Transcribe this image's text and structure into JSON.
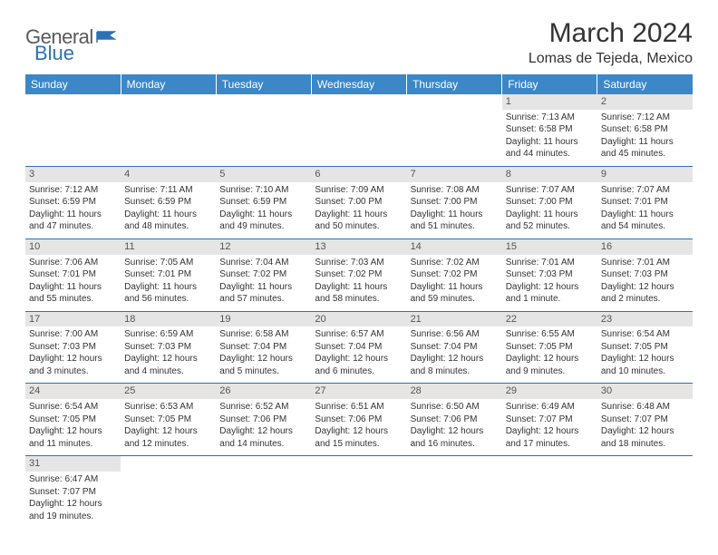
{
  "brand": {
    "general": "General",
    "blue": "Blue"
  },
  "title": "March 2024",
  "location": "Lomas de Tejeda, Mexico",
  "colors": {
    "header_bg": "#3b87c8",
    "border": "#2a72b5",
    "daynum_bg": "#e5e5e5",
    "logo_gray": "#5a5a5a",
    "logo_blue": "#2a72b5"
  },
  "weekdays": [
    "Sunday",
    "Monday",
    "Tuesday",
    "Wednesday",
    "Thursday",
    "Friday",
    "Saturday"
  ],
  "weeks": [
    [
      null,
      null,
      null,
      null,
      null,
      {
        "n": "1",
        "sr": "Sunrise: 7:13 AM",
        "ss": "Sunset: 6:58 PM",
        "dl1": "Daylight: 11 hours",
        "dl2": "and 44 minutes."
      },
      {
        "n": "2",
        "sr": "Sunrise: 7:12 AM",
        "ss": "Sunset: 6:58 PM",
        "dl1": "Daylight: 11 hours",
        "dl2": "and 45 minutes."
      }
    ],
    [
      {
        "n": "3",
        "sr": "Sunrise: 7:12 AM",
        "ss": "Sunset: 6:59 PM",
        "dl1": "Daylight: 11 hours",
        "dl2": "and 47 minutes."
      },
      {
        "n": "4",
        "sr": "Sunrise: 7:11 AM",
        "ss": "Sunset: 6:59 PM",
        "dl1": "Daylight: 11 hours",
        "dl2": "and 48 minutes."
      },
      {
        "n": "5",
        "sr": "Sunrise: 7:10 AM",
        "ss": "Sunset: 6:59 PM",
        "dl1": "Daylight: 11 hours",
        "dl2": "and 49 minutes."
      },
      {
        "n": "6",
        "sr": "Sunrise: 7:09 AM",
        "ss": "Sunset: 7:00 PM",
        "dl1": "Daylight: 11 hours",
        "dl2": "and 50 minutes."
      },
      {
        "n": "7",
        "sr": "Sunrise: 7:08 AM",
        "ss": "Sunset: 7:00 PM",
        "dl1": "Daylight: 11 hours",
        "dl2": "and 51 minutes."
      },
      {
        "n": "8",
        "sr": "Sunrise: 7:07 AM",
        "ss": "Sunset: 7:00 PM",
        "dl1": "Daylight: 11 hours",
        "dl2": "and 52 minutes."
      },
      {
        "n": "9",
        "sr": "Sunrise: 7:07 AM",
        "ss": "Sunset: 7:01 PM",
        "dl1": "Daylight: 11 hours",
        "dl2": "and 54 minutes."
      }
    ],
    [
      {
        "n": "10",
        "sr": "Sunrise: 7:06 AM",
        "ss": "Sunset: 7:01 PM",
        "dl1": "Daylight: 11 hours",
        "dl2": "and 55 minutes."
      },
      {
        "n": "11",
        "sr": "Sunrise: 7:05 AM",
        "ss": "Sunset: 7:01 PM",
        "dl1": "Daylight: 11 hours",
        "dl2": "and 56 minutes."
      },
      {
        "n": "12",
        "sr": "Sunrise: 7:04 AM",
        "ss": "Sunset: 7:02 PM",
        "dl1": "Daylight: 11 hours",
        "dl2": "and 57 minutes."
      },
      {
        "n": "13",
        "sr": "Sunrise: 7:03 AM",
        "ss": "Sunset: 7:02 PM",
        "dl1": "Daylight: 11 hours",
        "dl2": "and 58 minutes."
      },
      {
        "n": "14",
        "sr": "Sunrise: 7:02 AM",
        "ss": "Sunset: 7:02 PM",
        "dl1": "Daylight: 11 hours",
        "dl2": "and 59 minutes."
      },
      {
        "n": "15",
        "sr": "Sunrise: 7:01 AM",
        "ss": "Sunset: 7:03 PM",
        "dl1": "Daylight: 12 hours",
        "dl2": "and 1 minute."
      },
      {
        "n": "16",
        "sr": "Sunrise: 7:01 AM",
        "ss": "Sunset: 7:03 PM",
        "dl1": "Daylight: 12 hours",
        "dl2": "and 2 minutes."
      }
    ],
    [
      {
        "n": "17",
        "sr": "Sunrise: 7:00 AM",
        "ss": "Sunset: 7:03 PM",
        "dl1": "Daylight: 12 hours",
        "dl2": "and 3 minutes."
      },
      {
        "n": "18",
        "sr": "Sunrise: 6:59 AM",
        "ss": "Sunset: 7:03 PM",
        "dl1": "Daylight: 12 hours",
        "dl2": "and 4 minutes."
      },
      {
        "n": "19",
        "sr": "Sunrise: 6:58 AM",
        "ss": "Sunset: 7:04 PM",
        "dl1": "Daylight: 12 hours",
        "dl2": "and 5 minutes."
      },
      {
        "n": "20",
        "sr": "Sunrise: 6:57 AM",
        "ss": "Sunset: 7:04 PM",
        "dl1": "Daylight: 12 hours",
        "dl2": "and 6 minutes."
      },
      {
        "n": "21",
        "sr": "Sunrise: 6:56 AM",
        "ss": "Sunset: 7:04 PM",
        "dl1": "Daylight: 12 hours",
        "dl2": "and 8 minutes."
      },
      {
        "n": "22",
        "sr": "Sunrise: 6:55 AM",
        "ss": "Sunset: 7:05 PM",
        "dl1": "Daylight: 12 hours",
        "dl2": "and 9 minutes."
      },
      {
        "n": "23",
        "sr": "Sunrise: 6:54 AM",
        "ss": "Sunset: 7:05 PM",
        "dl1": "Daylight: 12 hours",
        "dl2": "and 10 minutes."
      }
    ],
    [
      {
        "n": "24",
        "sr": "Sunrise: 6:54 AM",
        "ss": "Sunset: 7:05 PM",
        "dl1": "Daylight: 12 hours",
        "dl2": "and 11 minutes."
      },
      {
        "n": "25",
        "sr": "Sunrise: 6:53 AM",
        "ss": "Sunset: 7:05 PM",
        "dl1": "Daylight: 12 hours",
        "dl2": "and 12 minutes."
      },
      {
        "n": "26",
        "sr": "Sunrise: 6:52 AM",
        "ss": "Sunset: 7:06 PM",
        "dl1": "Daylight: 12 hours",
        "dl2": "and 14 minutes."
      },
      {
        "n": "27",
        "sr": "Sunrise: 6:51 AM",
        "ss": "Sunset: 7:06 PM",
        "dl1": "Daylight: 12 hours",
        "dl2": "and 15 minutes."
      },
      {
        "n": "28",
        "sr": "Sunrise: 6:50 AM",
        "ss": "Sunset: 7:06 PM",
        "dl1": "Daylight: 12 hours",
        "dl2": "and 16 minutes."
      },
      {
        "n": "29",
        "sr": "Sunrise: 6:49 AM",
        "ss": "Sunset: 7:07 PM",
        "dl1": "Daylight: 12 hours",
        "dl2": "and 17 minutes."
      },
      {
        "n": "30",
        "sr": "Sunrise: 6:48 AM",
        "ss": "Sunset: 7:07 PM",
        "dl1": "Daylight: 12 hours",
        "dl2": "and 18 minutes."
      }
    ],
    [
      {
        "n": "31",
        "sr": "Sunrise: 6:47 AM",
        "ss": "Sunset: 7:07 PM",
        "dl1": "Daylight: 12 hours",
        "dl2": "and 19 minutes."
      },
      null,
      null,
      null,
      null,
      null,
      null
    ]
  ]
}
